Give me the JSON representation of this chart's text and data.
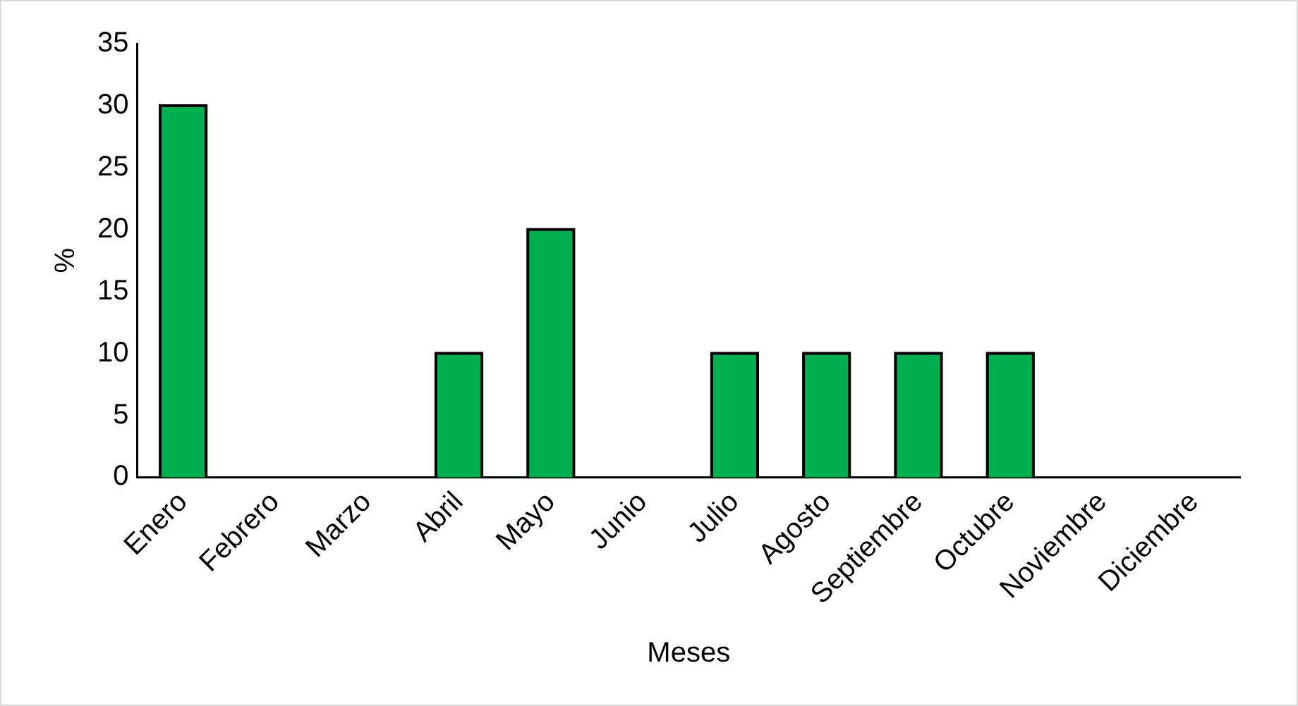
{
  "chart_data": {
    "type": "bar",
    "xlabel": "Meses",
    "ylabel": "%",
    "categories": [
      "Enero",
      "Febrero",
      "Marzo",
      "Abril",
      "Mayo",
      "Junio",
      "Julio",
      "Agosto",
      "Septiembre",
      "Octubre",
      "Noviembre",
      "Diciembre"
    ],
    "values": [
      30,
      0,
      0,
      10,
      20,
      0,
      10,
      10,
      10,
      10,
      0,
      0
    ],
    "color": "#00b050",
    "ylim": [
      0,
      35
    ],
    "yticks": [
      0,
      5,
      10,
      15,
      20,
      25,
      30,
      35
    ],
    "grid": false,
    "legend": false
  }
}
